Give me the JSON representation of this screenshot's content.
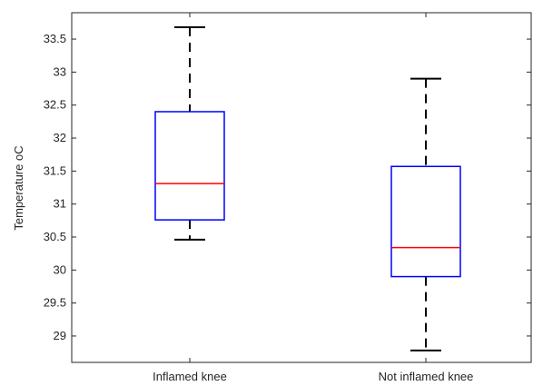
{
  "chart_data": {
    "type": "box",
    "title": "",
    "xlabel": "",
    "ylabel": "Temperature oC",
    "ylim": [
      28.6,
      33.9
    ],
    "yticks": [
      29,
      29.5,
      30,
      30.5,
      31,
      31.5,
      32,
      32.5,
      33,
      33.5
    ],
    "yticklabels": [
      "29",
      "29.5",
      "30",
      "30.5",
      "31",
      "31.5",
      "32",
      "32.5",
      "33",
      "33.5"
    ],
    "categories": [
      "Inflamed knee",
      "Not inflamed knee"
    ],
    "boxes": [
      {
        "name": "Inflamed knee",
        "whisker_low": 30.46,
        "q1": 30.76,
        "median": 31.31,
        "q3": 32.4,
        "whisker_high": 33.68
      },
      {
        "name": "Not inflamed knee",
        "whisker_low": 28.78,
        "q1": 29.9,
        "median": 30.34,
        "q3": 31.57,
        "whisker_high": 32.9
      }
    ],
    "colors": {
      "box": "#0000ff",
      "median": "#ff0000",
      "whisker": "#000000",
      "axis": "#262626"
    },
    "grid": false,
    "legend": "none"
  }
}
